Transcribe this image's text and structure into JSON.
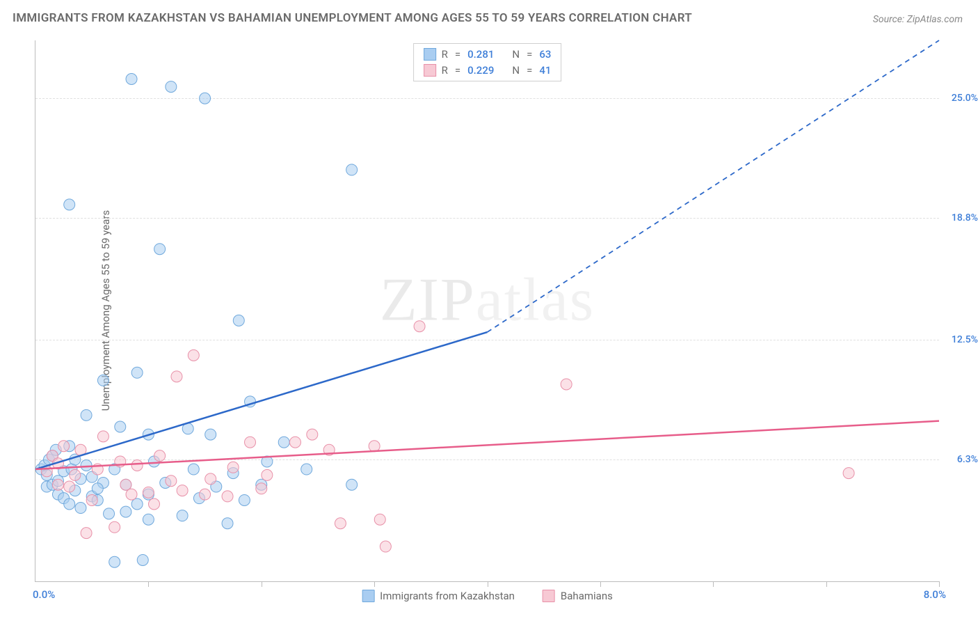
{
  "title": "IMMIGRANTS FROM KAZAKHSTAN VS BAHAMIAN UNEMPLOYMENT AMONG AGES 55 TO 59 YEARS CORRELATION CHART",
  "source_label": "Source: ZipAtlas.com",
  "y_axis_label": "Unemployment Among Ages 55 to 59 years",
  "watermark_a": "ZIP",
  "watermark_b": "atlas",
  "colors": {
    "blue_fill": "#a9cdf1",
    "blue_stroke": "#6fa8dc",
    "blue_line": "#2c68c9",
    "pink_fill": "#f7c9d4",
    "pink_stroke": "#e890a8",
    "pink_line": "#e75d8a",
    "value_text": "#3f7fd8"
  },
  "axes": {
    "x_min": 0.0,
    "x_max": 8.0,
    "y_min": 0.0,
    "y_max": 28.0,
    "y_ticks": [
      6.3,
      12.5,
      18.8,
      25.0
    ],
    "x_ticks": [
      1.0,
      2.0,
      3.0,
      4.0,
      5.0,
      6.0,
      7.0,
      8.0
    ],
    "x_origin_label": "0.0%",
    "x_max_label": "8.0%"
  },
  "stats": [
    {
      "swatch_fill": "#a9cdf1",
      "swatch_stroke": "#6fa8dc",
      "r": "0.281",
      "n": "63"
    },
    {
      "swatch_fill": "#f7c9d4",
      "swatch_stroke": "#e890a8",
      "r": "0.229",
      "n": "41"
    }
  ],
  "legend": [
    {
      "swatch_fill": "#a9cdf1",
      "swatch_stroke": "#6fa8dc",
      "label": "Immigrants from Kazakhstan"
    },
    {
      "swatch_fill": "#f7c9d4",
      "swatch_stroke": "#e890a8",
      "label": "Bahamians"
    }
  ],
  "trend_lines": {
    "blue": {
      "x1": 0.0,
      "y1": 5.8,
      "solid_to_x": 4.0,
      "solid_to_y": 12.9,
      "x2": 8.0,
      "y2": 28.0
    },
    "pink": {
      "x1": 0.0,
      "y1": 5.8,
      "x2": 8.0,
      "y2": 8.3
    }
  },
  "marker_radius": 8,
  "marker_opacity": 0.55,
  "series_blue": [
    [
      0.05,
      5.8
    ],
    [
      0.08,
      6.0
    ],
    [
      0.1,
      5.5
    ],
    [
      0.12,
      6.3
    ],
    [
      0.1,
      4.9
    ],
    [
      0.15,
      5.0
    ],
    [
      0.15,
      6.5
    ],
    [
      0.18,
      6.8
    ],
    [
      0.2,
      5.2
    ],
    [
      0.2,
      4.5
    ],
    [
      0.25,
      4.3
    ],
    [
      0.25,
      5.7
    ],
    [
      0.3,
      7.0
    ],
    [
      0.3,
      4.0
    ],
    [
      0.32,
      5.8
    ],
    [
      0.35,
      4.7
    ],
    [
      0.35,
      6.3
    ],
    [
      0.4,
      3.8
    ],
    [
      0.45,
      8.6
    ],
    [
      0.45,
      6.0
    ],
    [
      0.5,
      5.4
    ],
    [
      0.5,
      4.4
    ],
    [
      0.55,
      4.2
    ],
    [
      0.6,
      5.1
    ],
    [
      0.6,
      10.4
    ],
    [
      0.65,
      3.5
    ],
    [
      0.7,
      5.8
    ],
    [
      0.7,
      1.0
    ],
    [
      0.75,
      8.0
    ],
    [
      0.8,
      5.0
    ],
    [
      0.8,
      3.6
    ],
    [
      0.85,
      26.0
    ],
    [
      0.9,
      4.0
    ],
    [
      0.9,
      10.8
    ],
    [
      0.95,
      1.1
    ],
    [
      1.0,
      7.6
    ],
    [
      1.0,
      4.5
    ],
    [
      1.05,
      6.2
    ],
    [
      1.1,
      17.2
    ],
    [
      1.15,
      5.1
    ],
    [
      1.2,
      25.6
    ],
    [
      1.3,
      3.4
    ],
    [
      1.35,
      7.9
    ],
    [
      1.4,
      5.8
    ],
    [
      1.45,
      4.3
    ],
    [
      1.5,
      25.0
    ],
    [
      1.55,
      7.6
    ],
    [
      1.6,
      4.9
    ],
    [
      1.7,
      3.0
    ],
    [
      1.75,
      5.6
    ],
    [
      1.8,
      13.5
    ],
    [
      1.85,
      4.2
    ],
    [
      1.9,
      9.3
    ],
    [
      2.0,
      5.0
    ],
    [
      2.05,
      6.2
    ],
    [
      2.2,
      7.2
    ],
    [
      2.4,
      5.8
    ],
    [
      2.8,
      21.3
    ],
    [
      0.3,
      19.5
    ],
    [
      0.55,
      4.8
    ],
    [
      2.8,
      5.0
    ],
    [
      1.0,
      3.2
    ],
    [
      0.4,
      5.3
    ]
  ],
  "series_pink": [
    [
      0.1,
      5.7
    ],
    [
      0.15,
      6.5
    ],
    [
      0.2,
      5.0
    ],
    [
      0.2,
      6.1
    ],
    [
      0.25,
      7.0
    ],
    [
      0.3,
      4.9
    ],
    [
      0.35,
      5.5
    ],
    [
      0.4,
      6.8
    ],
    [
      0.45,
      2.5
    ],
    [
      0.5,
      4.2
    ],
    [
      0.55,
      5.8
    ],
    [
      0.6,
      7.5
    ],
    [
      0.7,
      2.8
    ],
    [
      0.75,
      6.2
    ],
    [
      0.8,
      5.0
    ],
    [
      0.85,
      4.5
    ],
    [
      0.9,
      6.0
    ],
    [
      1.0,
      4.6
    ],
    [
      1.05,
      4.0
    ],
    [
      1.1,
      6.5
    ],
    [
      1.2,
      5.2
    ],
    [
      1.25,
      10.6
    ],
    [
      1.3,
      4.7
    ],
    [
      1.4,
      11.7
    ],
    [
      1.5,
      4.5
    ],
    [
      1.55,
      5.3
    ],
    [
      1.7,
      4.4
    ],
    [
      1.75,
      5.9
    ],
    [
      1.9,
      7.2
    ],
    [
      2.0,
      4.8
    ],
    [
      2.05,
      5.5
    ],
    [
      2.3,
      7.2
    ],
    [
      2.45,
      7.6
    ],
    [
      2.7,
      3.0
    ],
    [
      3.0,
      7.0
    ],
    [
      3.05,
      3.2
    ],
    [
      3.1,
      1.8
    ],
    [
      3.4,
      13.2
    ],
    [
      4.7,
      10.2
    ],
    [
      7.2,
      5.6
    ],
    [
      2.6,
      6.8
    ]
  ]
}
